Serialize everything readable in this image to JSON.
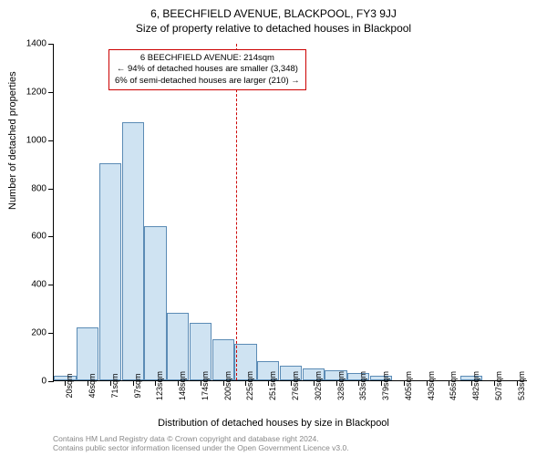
{
  "titles": {
    "line1": "6, BEECHFIELD AVENUE, BLACKPOOL, FY3 9JJ",
    "line2": "Size of property relative to detached houses in Blackpool"
  },
  "axes": {
    "ylabel": "Number of detached properties",
    "xlabel": "Distribution of detached houses by size in Blackpool",
    "ylim": [
      0,
      1400
    ],
    "ytick_step": 200,
    "yticks": [
      0,
      200,
      400,
      600,
      800,
      1000,
      1200,
      1400
    ],
    "xticks": [
      "20sqm",
      "46sqm",
      "71sqm",
      "97sqm",
      "123sqm",
      "148sqm",
      "174sqm",
      "200sqm",
      "225sqm",
      "251sqm",
      "276sqm",
      "302sqm",
      "328sqm",
      "353sqm",
      "379sqm",
      "405sqm",
      "430sqm",
      "456sqm",
      "482sqm",
      "507sqm",
      "533sqm"
    ]
  },
  "histogram": {
    "type": "histogram",
    "bin_labels": [
      "20sqm",
      "46sqm",
      "71sqm",
      "97sqm",
      "123sqm",
      "148sqm",
      "174sqm",
      "200sqm",
      "225sqm",
      "251sqm",
      "276sqm",
      "302sqm",
      "328sqm",
      "353sqm",
      "379sqm",
      "405sqm",
      "430sqm",
      "456sqm",
      "482sqm",
      "507sqm",
      "533sqm"
    ],
    "values": [
      20,
      220,
      900,
      1070,
      640,
      280,
      240,
      170,
      150,
      80,
      60,
      50,
      40,
      30,
      20,
      0,
      0,
      0,
      20,
      0,
      0
    ],
    "bar_fill": "#cfe3f2",
    "bar_border": "#5b8bb5",
    "background_color": "#ffffff"
  },
  "marker": {
    "value_sqm": 214,
    "line_color": "#cc0000",
    "box_border": "#cc0000",
    "lines": {
      "l1": "6 BEECHFIELD AVENUE: 214sqm",
      "l2": "← 94% of detached houses are smaller (3,348)",
      "l3": "6% of semi-detached houses are larger (210) →"
    }
  },
  "footer": {
    "l1": "Contains HM Land Registry data © Crown copyright and database right 2024.",
    "l2": "Contains public sector information licensed under the Open Government Licence v3.0."
  }
}
